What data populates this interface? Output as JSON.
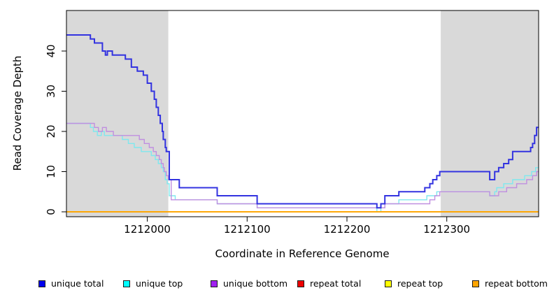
{
  "figure": {
    "background": "#FFFFFF",
    "plot_border_color": "#000000",
    "shade_color": "#D9D9D9"
  },
  "chart_data": {
    "type": "line",
    "subtype": "step",
    "title": "",
    "xlabel": "Coordinate in Reference Genome",
    "ylabel": "Read Coverage Depth",
    "xlim": [
      1211919,
      1212392
    ],
    "ylim": [
      0,
      47
    ],
    "grid": false,
    "legend_position": "bottom",
    "x_ticks": [
      1212000,
      1212100,
      1212200,
      1212300
    ],
    "x_tick_labels": [
      "1212000",
      "1212100",
      "1212200",
      "1212300"
    ],
    "y_ticks": [
      0,
      10,
      20,
      30,
      40
    ],
    "y_tick_labels": [
      "0",
      "10",
      "20",
      "30",
      "40"
    ],
    "shaded_regions": [
      {
        "name": "left-shaded-region",
        "x0": 1211919,
        "x1": 1212021,
        "color": "#D9D9D9"
      },
      {
        "name": "right-shaded-region",
        "x0": 1212294,
        "x1": 1212392,
        "color": "#D9D9D9"
      }
    ],
    "draw_order": [
      1,
      2,
      0,
      3,
      4,
      5
    ],
    "series": [
      {
        "name": "unique total",
        "line_color": "#3333E0",
        "legend_fill": "#0000EE",
        "line_width": 2,
        "points": [
          [
            1211919,
            44
          ],
          [
            1211943,
            43
          ],
          [
            1211947,
            42
          ],
          [
            1211955,
            40
          ],
          [
            1211958,
            39
          ],
          [
            1211960,
            40
          ],
          [
            1211965,
            39
          ],
          [
            1211978,
            38
          ],
          [
            1211984,
            36
          ],
          [
            1211990,
            35
          ],
          [
            1211996,
            34
          ],
          [
            1212000,
            32
          ],
          [
            1212004,
            30
          ],
          [
            1212007,
            28
          ],
          [
            1212009,
            26
          ],
          [
            1212011,
            24
          ],
          [
            1212013,
            22
          ],
          [
            1212015,
            20
          ],
          [
            1212016,
            18
          ],
          [
            1212018,
            16
          ],
          [
            1212019,
            15
          ],
          [
            1212022,
            8
          ],
          [
            1212032,
            6
          ],
          [
            1212070,
            4
          ],
          [
            1212110,
            2
          ],
          [
            1212230,
            1
          ],
          [
            1212234,
            2
          ],
          [
            1212238,
            4
          ],
          [
            1212252,
            5
          ],
          [
            1212278,
            6
          ],
          [
            1212283,
            7
          ],
          [
            1212286,
            8
          ],
          [
            1212290,
            9
          ],
          [
            1212293,
            10
          ],
          [
            1212343,
            8
          ],
          [
            1212348,
            10
          ],
          [
            1212352,
            11
          ],
          [
            1212357,
            12
          ],
          [
            1212362,
            13
          ],
          [
            1212366,
            15
          ],
          [
            1212384,
            16
          ],
          [
            1212386,
            17
          ],
          [
            1212388,
            19
          ],
          [
            1212390,
            21
          ]
        ]
      },
      {
        "name": "unique top",
        "line_color": "#7FE8EE",
        "legend_fill": "#00FFFF",
        "line_width": 1.4,
        "points": [
          [
            1211919,
            22
          ],
          [
            1211943,
            21
          ],
          [
            1211946,
            20
          ],
          [
            1211950,
            19
          ],
          [
            1211954,
            20
          ],
          [
            1211957,
            19
          ],
          [
            1211975,
            18
          ],
          [
            1211981,
            17
          ],
          [
            1211987,
            16
          ],
          [
            1211994,
            15
          ],
          [
            1212004,
            14
          ],
          [
            1212008,
            13
          ],
          [
            1212011,
            12
          ],
          [
            1212014,
            11
          ],
          [
            1212016,
            10
          ],
          [
            1212018,
            8
          ],
          [
            1212020,
            7
          ],
          [
            1212022,
            4
          ],
          [
            1212028,
            3
          ],
          [
            1212070,
            2
          ],
          [
            1212110,
            1
          ],
          [
            1212230,
            0
          ],
          [
            1212234,
            1
          ],
          [
            1212238,
            2
          ],
          [
            1212252,
            3
          ],
          [
            1212280,
            4
          ],
          [
            1212290,
            5
          ],
          [
            1212343,
            4
          ],
          [
            1212348,
            5
          ],
          [
            1212350,
            6
          ],
          [
            1212357,
            7
          ],
          [
            1212366,
            8
          ],
          [
            1212378,
            9
          ],
          [
            1212385,
            10
          ],
          [
            1212389,
            11
          ]
        ]
      },
      {
        "name": "unique bottom",
        "line_color": "#C08FE0",
        "legend_fill": "#A020F0",
        "line_width": 1.4,
        "points": [
          [
            1211919,
            22
          ],
          [
            1211947,
            21
          ],
          [
            1211951,
            20
          ],
          [
            1211955,
            21
          ],
          [
            1211959,
            20
          ],
          [
            1211966,
            19
          ],
          [
            1211992,
            18
          ],
          [
            1211997,
            17
          ],
          [
            1212002,
            16
          ],
          [
            1212006,
            15
          ],
          [
            1212009,
            14
          ],
          [
            1212012,
            13
          ],
          [
            1212014,
            12
          ],
          [
            1212016,
            11
          ],
          [
            1212017,
            10
          ],
          [
            1212019,
            9
          ],
          [
            1212021,
            8
          ],
          [
            1212024,
            3
          ],
          [
            1212070,
            2
          ],
          [
            1212110,
            1
          ],
          [
            1212238,
            2
          ],
          [
            1212283,
            3
          ],
          [
            1212288,
            4
          ],
          [
            1212293,
            5
          ],
          [
            1212343,
            4
          ],
          [
            1212352,
            5
          ],
          [
            1212360,
            6
          ],
          [
            1212370,
            7
          ],
          [
            1212380,
            8
          ],
          [
            1212386,
            9
          ],
          [
            1212390,
            10
          ]
        ]
      },
      {
        "name": "repeat total",
        "line_color": "#DD0000",
        "legend_fill": "#EE0000",
        "line_width": 1.4,
        "points": [
          [
            1211919,
            0
          ]
        ]
      },
      {
        "name": "repeat top",
        "line_color": "#FFFF00",
        "legend_fill": "#FFFF00",
        "line_width": 1.4,
        "points": [
          [
            1211919,
            0
          ]
        ]
      },
      {
        "name": "repeat bottom",
        "line_color": "#FFA500",
        "legend_fill": "#FFA500",
        "line_width": 1.8,
        "points": [
          [
            1211919,
            0
          ]
        ]
      }
    ]
  },
  "legend_layout_note": "unique total, unique top, unique bottom, repeat total, repeat top, repeat bottom"
}
